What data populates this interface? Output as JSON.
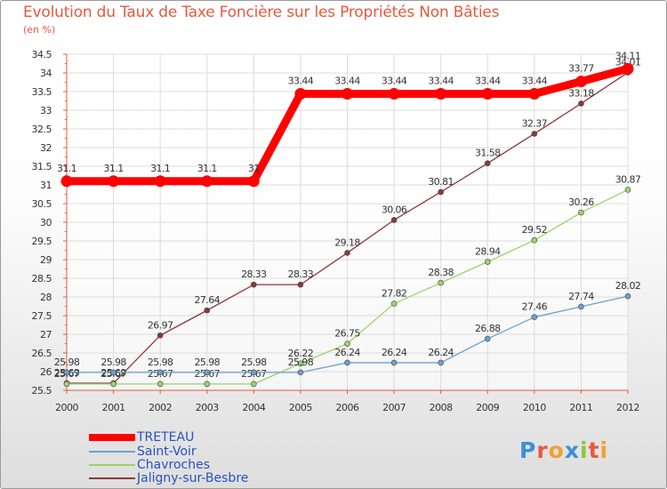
{
  "header": {
    "title": "Evolution du Taux de Taxe Foncière sur les Propriétés Non Bâties",
    "unit": "(en %)"
  },
  "colors": {
    "title": "#e8583d",
    "axis": "#e8583d",
    "grid": "#dcdcdc"
  },
  "logo": {
    "text": "Proxiti",
    "letters": [
      "P",
      "r",
      "o",
      "x",
      "i",
      "t",
      "i"
    ],
    "letter_colors": [
      "#3b8fd6",
      "#e8583d",
      "#f0a030",
      "#3b8fd6",
      "#8cc63f",
      "#e8583d",
      "#f0a030"
    ]
  },
  "chart_data": {
    "type": "line",
    "title": "Evolution du Taux de Taxe Foncière sur les Propriétés Non Bâties",
    "ylabel": "(en %)",
    "xlabel": "",
    "x": [
      "2000",
      "2001",
      "2002",
      "2003",
      "2004",
      "2005",
      "2006",
      "2007",
      "2008",
      "2009",
      "2010",
      "2011",
      "2012"
    ],
    "ylim": [
      25.5,
      34.5
    ],
    "yticks": [
      "25.5",
      "26",
      "26.5",
      "27",
      "27.5",
      "28",
      "28.5",
      "29",
      "29.5",
      "30",
      "30.5",
      "31",
      "31.5",
      "32",
      "32.5",
      "33",
      "33.5",
      "34",
      "34.5"
    ],
    "grid": true,
    "legend_position": "bottom-left",
    "series": [
      {
        "name": "TRETEAU",
        "color": "#ff0000",
        "thick": true,
        "values": [
          31.1,
          31.1,
          31.1,
          31.1,
          31.1,
          33.44,
          33.44,
          33.44,
          33.44,
          33.44,
          33.44,
          33.77,
          34.11
        ],
        "labels": [
          "31.1",
          "31.1",
          "31.1",
          "31.1",
          "31",
          "33.44",
          "33.44",
          "33.44",
          "33.44",
          "33.44",
          "33.44",
          "33.77",
          "34.11"
        ]
      },
      {
        "name": "Saint-Voir",
        "color": "#6ea0cf",
        "thick": false,
        "values": [
          25.98,
          25.98,
          25.98,
          25.98,
          25.98,
          25.98,
          26.24,
          26.24,
          26.24,
          26.88,
          27.46,
          27.74,
          28.02
        ],
        "labels": [
          "25.98",
          "25.98",
          "25.98",
          "25.98",
          "25.98",
          "25.98",
          "26.24",
          "26.24",
          "26.24",
          "26.88",
          "27.46",
          "27.74",
          "28.02"
        ]
      },
      {
        "name": "Chavroches",
        "color": "#9ad46a",
        "thick": false,
        "values": [
          25.67,
          25.67,
          25.67,
          25.67,
          25.67,
          26.22,
          26.75,
          27.82,
          28.38,
          28.94,
          29.52,
          30.26,
          30.87
        ],
        "labels": [
          "25.67",
          "25.67",
          "25.67",
          "25.67",
          "25.67",
          "26.22",
          "26.75",
          "27.82",
          "28.38",
          "28.94",
          "29.52",
          "30.26",
          "30.87"
        ]
      },
      {
        "name": "Jaligny-sur-Besbre",
        "color": "#8a3a3a",
        "thick": false,
        "values": [
          25.69,
          25.69,
          26.97,
          27.64,
          28.33,
          28.33,
          29.18,
          30.06,
          30.81,
          31.58,
          32.37,
          33.18,
          34.01
        ],
        "labels": [
          "25.69",
          "25.69",
          "26.97",
          "27.64",
          "28.33",
          "28.33",
          "29.18",
          "30.06",
          "30.81",
          "31.58",
          "32.37",
          "33.18",
          "34.01"
        ]
      }
    ]
  }
}
